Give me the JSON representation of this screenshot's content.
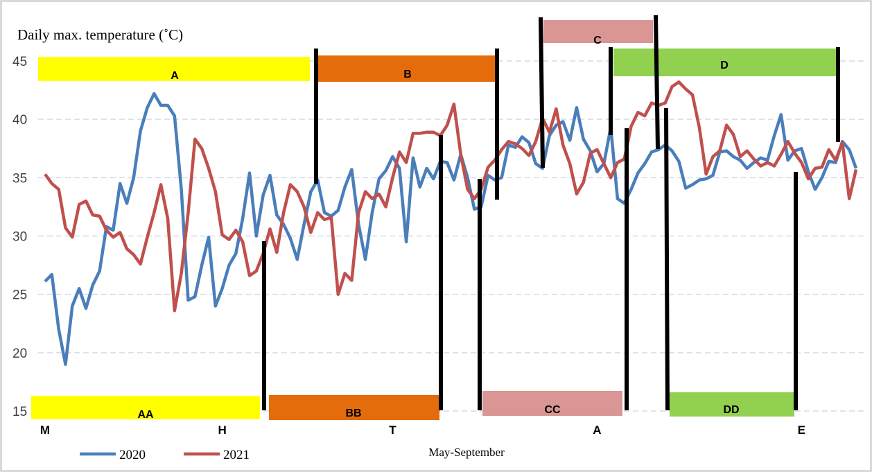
{
  "chart_data": {
    "type": "line",
    "title": "Daily max. temperature (˚C)",
    "x_label": "May-September",
    "categories": [
      "M",
      null,
      null,
      null,
      null,
      null,
      null,
      null,
      null,
      null,
      null,
      null,
      null,
      null,
      null,
      null,
      null,
      null,
      null,
      null,
      null,
      null,
      null,
      null,
      null,
      null,
      "H",
      null,
      null,
      null,
      null,
      null,
      null,
      null,
      null,
      null,
      null,
      null,
      null,
      null,
      null,
      null,
      null,
      null,
      null,
      null,
      null,
      null,
      null,
      null,
      null,
      "T",
      null,
      null,
      null,
      null,
      null,
      null,
      null,
      null,
      null,
      null,
      null,
      null,
      null,
      null,
      null,
      null,
      null,
      null,
      null,
      null,
      null,
      null,
      null,
      null,
      null,
      null,
      null,
      null,
      null,
      "A",
      null,
      null,
      null,
      null,
      null,
      null,
      null,
      null,
      null,
      null,
      null,
      null,
      null,
      null,
      null,
      null,
      null,
      null,
      null,
      null,
      null,
      null,
      null,
      null,
      null,
      null,
      null,
      null,
      null,
      "E",
      null,
      null,
      null,
      null,
      null,
      null,
      null,
      null
    ],
    "series": [
      {
        "name": "2020",
        "color": "#4a7ebb",
        "values": [
          26.1,
          26.7,
          22,
          19,
          24,
          25.5,
          23.8,
          25.8,
          27,
          30.8,
          30.5,
          34.5,
          32.8,
          35,
          39,
          41,
          42.2,
          41.2,
          41.2,
          40.3,
          34,
          24.5,
          24.8,
          27.5,
          29.9,
          24,
          25.5,
          27.5,
          28.5,
          31.5,
          35.4,
          30,
          33.5,
          35.2,
          31.8,
          31,
          29.8,
          28,
          31,
          33.8,
          34.8,
          32,
          31.7,
          32.2,
          34.2,
          35.7,
          31,
          28,
          32,
          34.9,
          35.6,
          36.8,
          35.8,
          29.5,
          36.7,
          34.2,
          35.8,
          34.9,
          36.4,
          36.3,
          34.8,
          37,
          35,
          32.3,
          32.5,
          35.2,
          34.8,
          35,
          37.8,
          37.6,
          38.5,
          38,
          36.2,
          35.8,
          38.6,
          39.5,
          39.8,
          38.2,
          41,
          38.3,
          37.3,
          35.5,
          36.2,
          39.3,
          33.2,
          32.8,
          34,
          35.4,
          36.2,
          37.2,
          37.4,
          37.8,
          37.3,
          36.4,
          34.1,
          34.4,
          34.8,
          34.9,
          35.2,
          37.2,
          37.3,
          36.8,
          36.5,
          35.8,
          36.3,
          36.7,
          36.5,
          38.6,
          40.4,
          36.5,
          37.3,
          37.5,
          35.5,
          34,
          35,
          36.4,
          36.3,
          38.1,
          37.4,
          35.8
        ]
      },
      {
        "name": "2021",
        "color": "#c0504d",
        "values": [
          35.3,
          34.5,
          34,
          30.7,
          29.9,
          32.7,
          33,
          31.8,
          31.7,
          30.5,
          29.9,
          30.3,
          28.9,
          28.4,
          27.6,
          29.9,
          32,
          34.4,
          31.5,
          23.6,
          26.8,
          32,
          38.3,
          37.5,
          35.8,
          33.8,
          30.1,
          29.7,
          30.5,
          29.5,
          26.6,
          27,
          28.5,
          30.6,
          28.6,
          32,
          34.4,
          33.8,
          32.5,
          30.3,
          32,
          31.4,
          31.6,
          25,
          26.8,
          26.2,
          32,
          33.8,
          33.2,
          33.6,
          32.5,
          35,
          37.2,
          36.3,
          38.8,
          38.8,
          38.9,
          38.9,
          38.6,
          39.5,
          41.3,
          37,
          34,
          33.2,
          34,
          35.9,
          36.5,
          37.4,
          38.1,
          37.9,
          37.5,
          36.9,
          38.1,
          40.1,
          38.9,
          40.9,
          37.8,
          36.2,
          33.6,
          34.6,
          37.1,
          37.4,
          36.2,
          35,
          36.3,
          36.6,
          39.4,
          40.6,
          40.3,
          41.4,
          41.2,
          41.4,
          42.8,
          43.2,
          42.6,
          42.1,
          39.3,
          35.3,
          36.8,
          37.3,
          39.5,
          38.7,
          36.8,
          37.3,
          36.6,
          36,
          36.3,
          36,
          37,
          38.1,
          37.1,
          36.3,
          34.9,
          35.8,
          35.9,
          37.4,
          36.5,
          38,
          33.2,
          35.7
        ]
      }
    ],
    "ylim": [
      15,
      45
    ],
    "yticks": [
      15,
      20,
      25,
      30,
      35,
      40,
      45
    ],
    "grid": true,
    "annotations": [
      "A",
      "B",
      "C",
      "D",
      "AA",
      "BB",
      "CC",
      "DD"
    ]
  }
}
